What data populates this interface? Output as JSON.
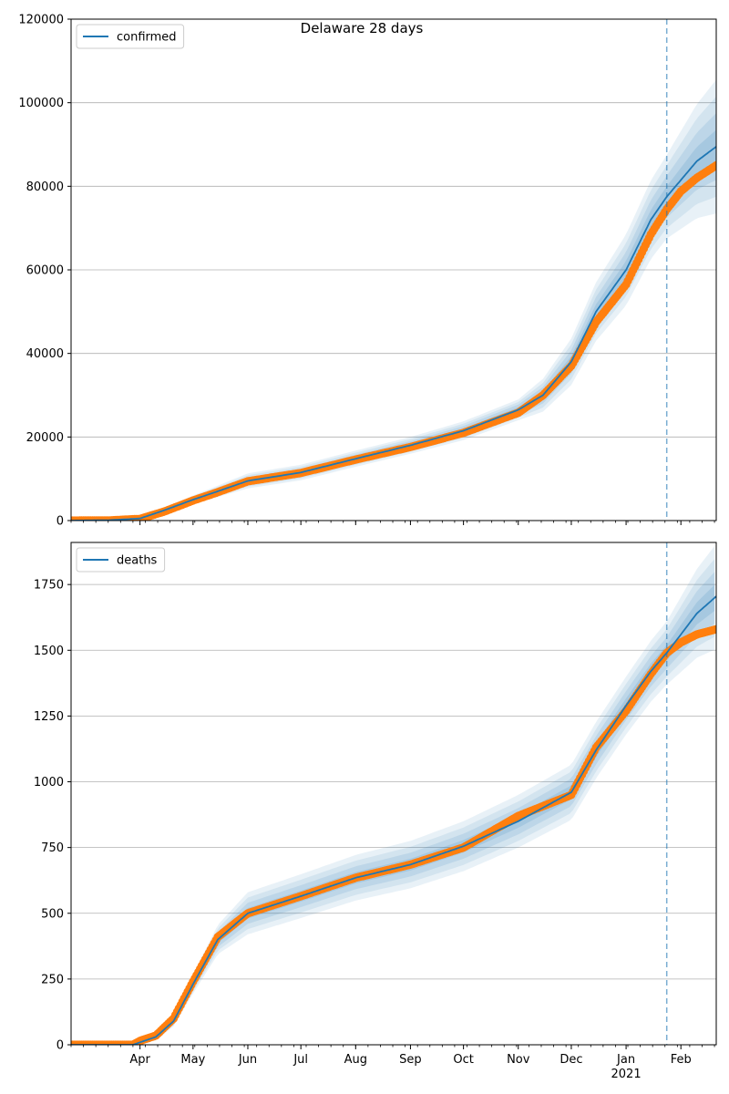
{
  "figure_title": "Delaware 28 days",
  "colors": {
    "model": "#1f77b4",
    "observed": "#ff7f0e",
    "band": "#1f77b4",
    "grid": "#b0b0b0",
    "forecast_line": "#1f77b4"
  },
  "x_axis": {
    "date_range": [
      "2020-02-22",
      "2021-02-21"
    ],
    "month_ticks": [
      {
        "label": "Apr",
        "date": "2020-04-01"
      },
      {
        "label": "May",
        "date": "2020-05-01"
      },
      {
        "label": "Jun",
        "date": "2020-06-01"
      },
      {
        "label": "Jul",
        "date": "2020-07-01"
      },
      {
        "label": "Aug",
        "date": "2020-08-01"
      },
      {
        "label": "Sep",
        "date": "2020-09-01"
      },
      {
        "label": "Oct",
        "date": "2020-10-01"
      },
      {
        "label": "Nov",
        "date": "2020-11-01"
      },
      {
        "label": "Dec",
        "date": "2020-12-01"
      },
      {
        "label": "Jan",
        "date": "2021-01-01"
      },
      {
        "label": "Feb",
        "date": "2021-02-01"
      }
    ],
    "year_label": "2021",
    "forecast_start": "2021-01-24"
  },
  "chart_data": [
    {
      "type": "line",
      "legend": "confirmed",
      "legend_position": "upper-left",
      "ylim": [
        0,
        120000
      ],
      "yticks": [
        0,
        20000,
        40000,
        60000,
        80000,
        100000,
        120000
      ],
      "grid_y": true,
      "model_points": [
        [
          "2020-02-22",
          0
        ],
        [
          "2020-03-15",
          100
        ],
        [
          "2020-04-01",
          500
        ],
        [
          "2020-04-15",
          2500
        ],
        [
          "2020-05-01",
          5000
        ],
        [
          "2020-05-15",
          7000
        ],
        [
          "2020-06-01",
          9500
        ],
        [
          "2020-07-01",
          11500
        ],
        [
          "2020-08-01",
          14800
        ],
        [
          "2020-09-01",
          18000
        ],
        [
          "2020-10-01",
          21500
        ],
        [
          "2020-11-01",
          26500
        ],
        [
          "2020-11-15",
          30000
        ],
        [
          "2020-12-01",
          38000
        ],
        [
          "2020-12-15",
          50000
        ],
        [
          "2021-01-01",
          60000
        ],
        [
          "2021-01-15",
          72000
        ],
        [
          "2021-01-24",
          77500
        ],
        [
          "2021-02-01",
          81500
        ],
        [
          "2021-02-10",
          86000
        ],
        [
          "2021-02-21",
          89500
        ]
      ],
      "band_widths": [
        [
          "2020-04-15",
          600
        ],
        [
          "2020-06-01",
          1800
        ],
        [
          "2020-09-01",
          2000
        ],
        [
          "2020-11-01",
          2500
        ],
        [
          "2020-12-15",
          7000
        ],
        [
          "2021-01-01",
          8500
        ],
        [
          "2021-01-24",
          10000
        ],
        [
          "2021-02-21",
          16000
        ]
      ],
      "observed_points": [
        [
          "2020-02-22",
          0
        ],
        [
          "2020-03-15",
          50
        ],
        [
          "2020-04-01",
          400
        ],
        [
          "2020-04-15",
          2200
        ],
        [
          "2020-05-01",
          4800
        ],
        [
          "2020-05-15",
          6800
        ],
        [
          "2020-06-01",
          9400
        ],
        [
          "2020-07-01",
          11400
        ],
        [
          "2020-08-01",
          14600
        ],
        [
          "2020-09-01",
          17600
        ],
        [
          "2020-10-01",
          21000
        ],
        [
          "2020-11-01",
          25800
        ],
        [
          "2020-11-15",
          30000
        ],
        [
          "2020-12-01",
          37000
        ],
        [
          "2020-12-15",
          47500
        ],
        [
          "2021-01-01",
          56500
        ],
        [
          "2021-01-15",
          68500
        ],
        [
          "2021-01-24",
          74500
        ],
        [
          "2021-02-01",
          78800
        ],
        [
          "2021-02-10",
          82000
        ],
        [
          "2021-02-21",
          85000
        ]
      ]
    },
    {
      "type": "line",
      "legend": "deaths",
      "legend_position": "upper-left",
      "ylim": [
        0,
        1910
      ],
      "yticks": [
        0,
        250,
        500,
        750,
        1000,
        1250,
        1500,
        1750
      ],
      "grid_y": true,
      "model_points": [
        [
          "2020-02-22",
          0
        ],
        [
          "2020-03-28",
          0
        ],
        [
          "2020-04-10",
          30
        ],
        [
          "2020-04-20",
          90
        ],
        [
          "2020-05-01",
          230
        ],
        [
          "2020-05-15",
          400
        ],
        [
          "2020-06-01",
          500
        ],
        [
          "2020-07-01",
          565
        ],
        [
          "2020-08-01",
          635
        ],
        [
          "2020-09-01",
          685
        ],
        [
          "2020-10-01",
          755
        ],
        [
          "2020-11-01",
          850
        ],
        [
          "2020-12-01",
          960
        ],
        [
          "2020-12-15",
          1120
        ],
        [
          "2021-01-01",
          1290
        ],
        [
          "2021-01-15",
          1420
        ],
        [
          "2021-01-24",
          1490
        ],
        [
          "2021-02-01",
          1560
        ],
        [
          "2021-02-10",
          1640
        ],
        [
          "2021-02-21",
          1705
        ]
      ],
      "band_widths": [
        [
          "2020-04-20",
          20
        ],
        [
          "2020-06-01",
          80
        ],
        [
          "2020-09-01",
          90
        ],
        [
          "2020-11-01",
          100
        ],
        [
          "2021-01-01",
          110
        ],
        [
          "2021-01-24",
          120
        ],
        [
          "2021-02-21",
          200
        ]
      ],
      "observed_points": [
        [
          "2020-02-22",
          0
        ],
        [
          "2020-03-28",
          0
        ],
        [
          "2020-04-01",
          15
        ],
        [
          "2020-04-10",
          35
        ],
        [
          "2020-04-20",
          100
        ],
        [
          "2020-05-01",
          240
        ],
        [
          "2020-05-15",
          410
        ],
        [
          "2020-06-01",
          500
        ],
        [
          "2020-07-01",
          565
        ],
        [
          "2020-08-01",
          635
        ],
        [
          "2020-09-01",
          685
        ],
        [
          "2020-10-01",
          750
        ],
        [
          "2020-11-01",
          870
        ],
        [
          "2020-12-01",
          950
        ],
        [
          "2020-12-15",
          1130
        ],
        [
          "2021-01-01",
          1270
        ],
        [
          "2021-01-15",
          1410
        ],
        [
          "2021-01-24",
          1490
        ],
        [
          "2021-02-01",
          1530
        ],
        [
          "2021-02-10",
          1560
        ],
        [
          "2021-02-21",
          1580
        ]
      ]
    }
  ]
}
